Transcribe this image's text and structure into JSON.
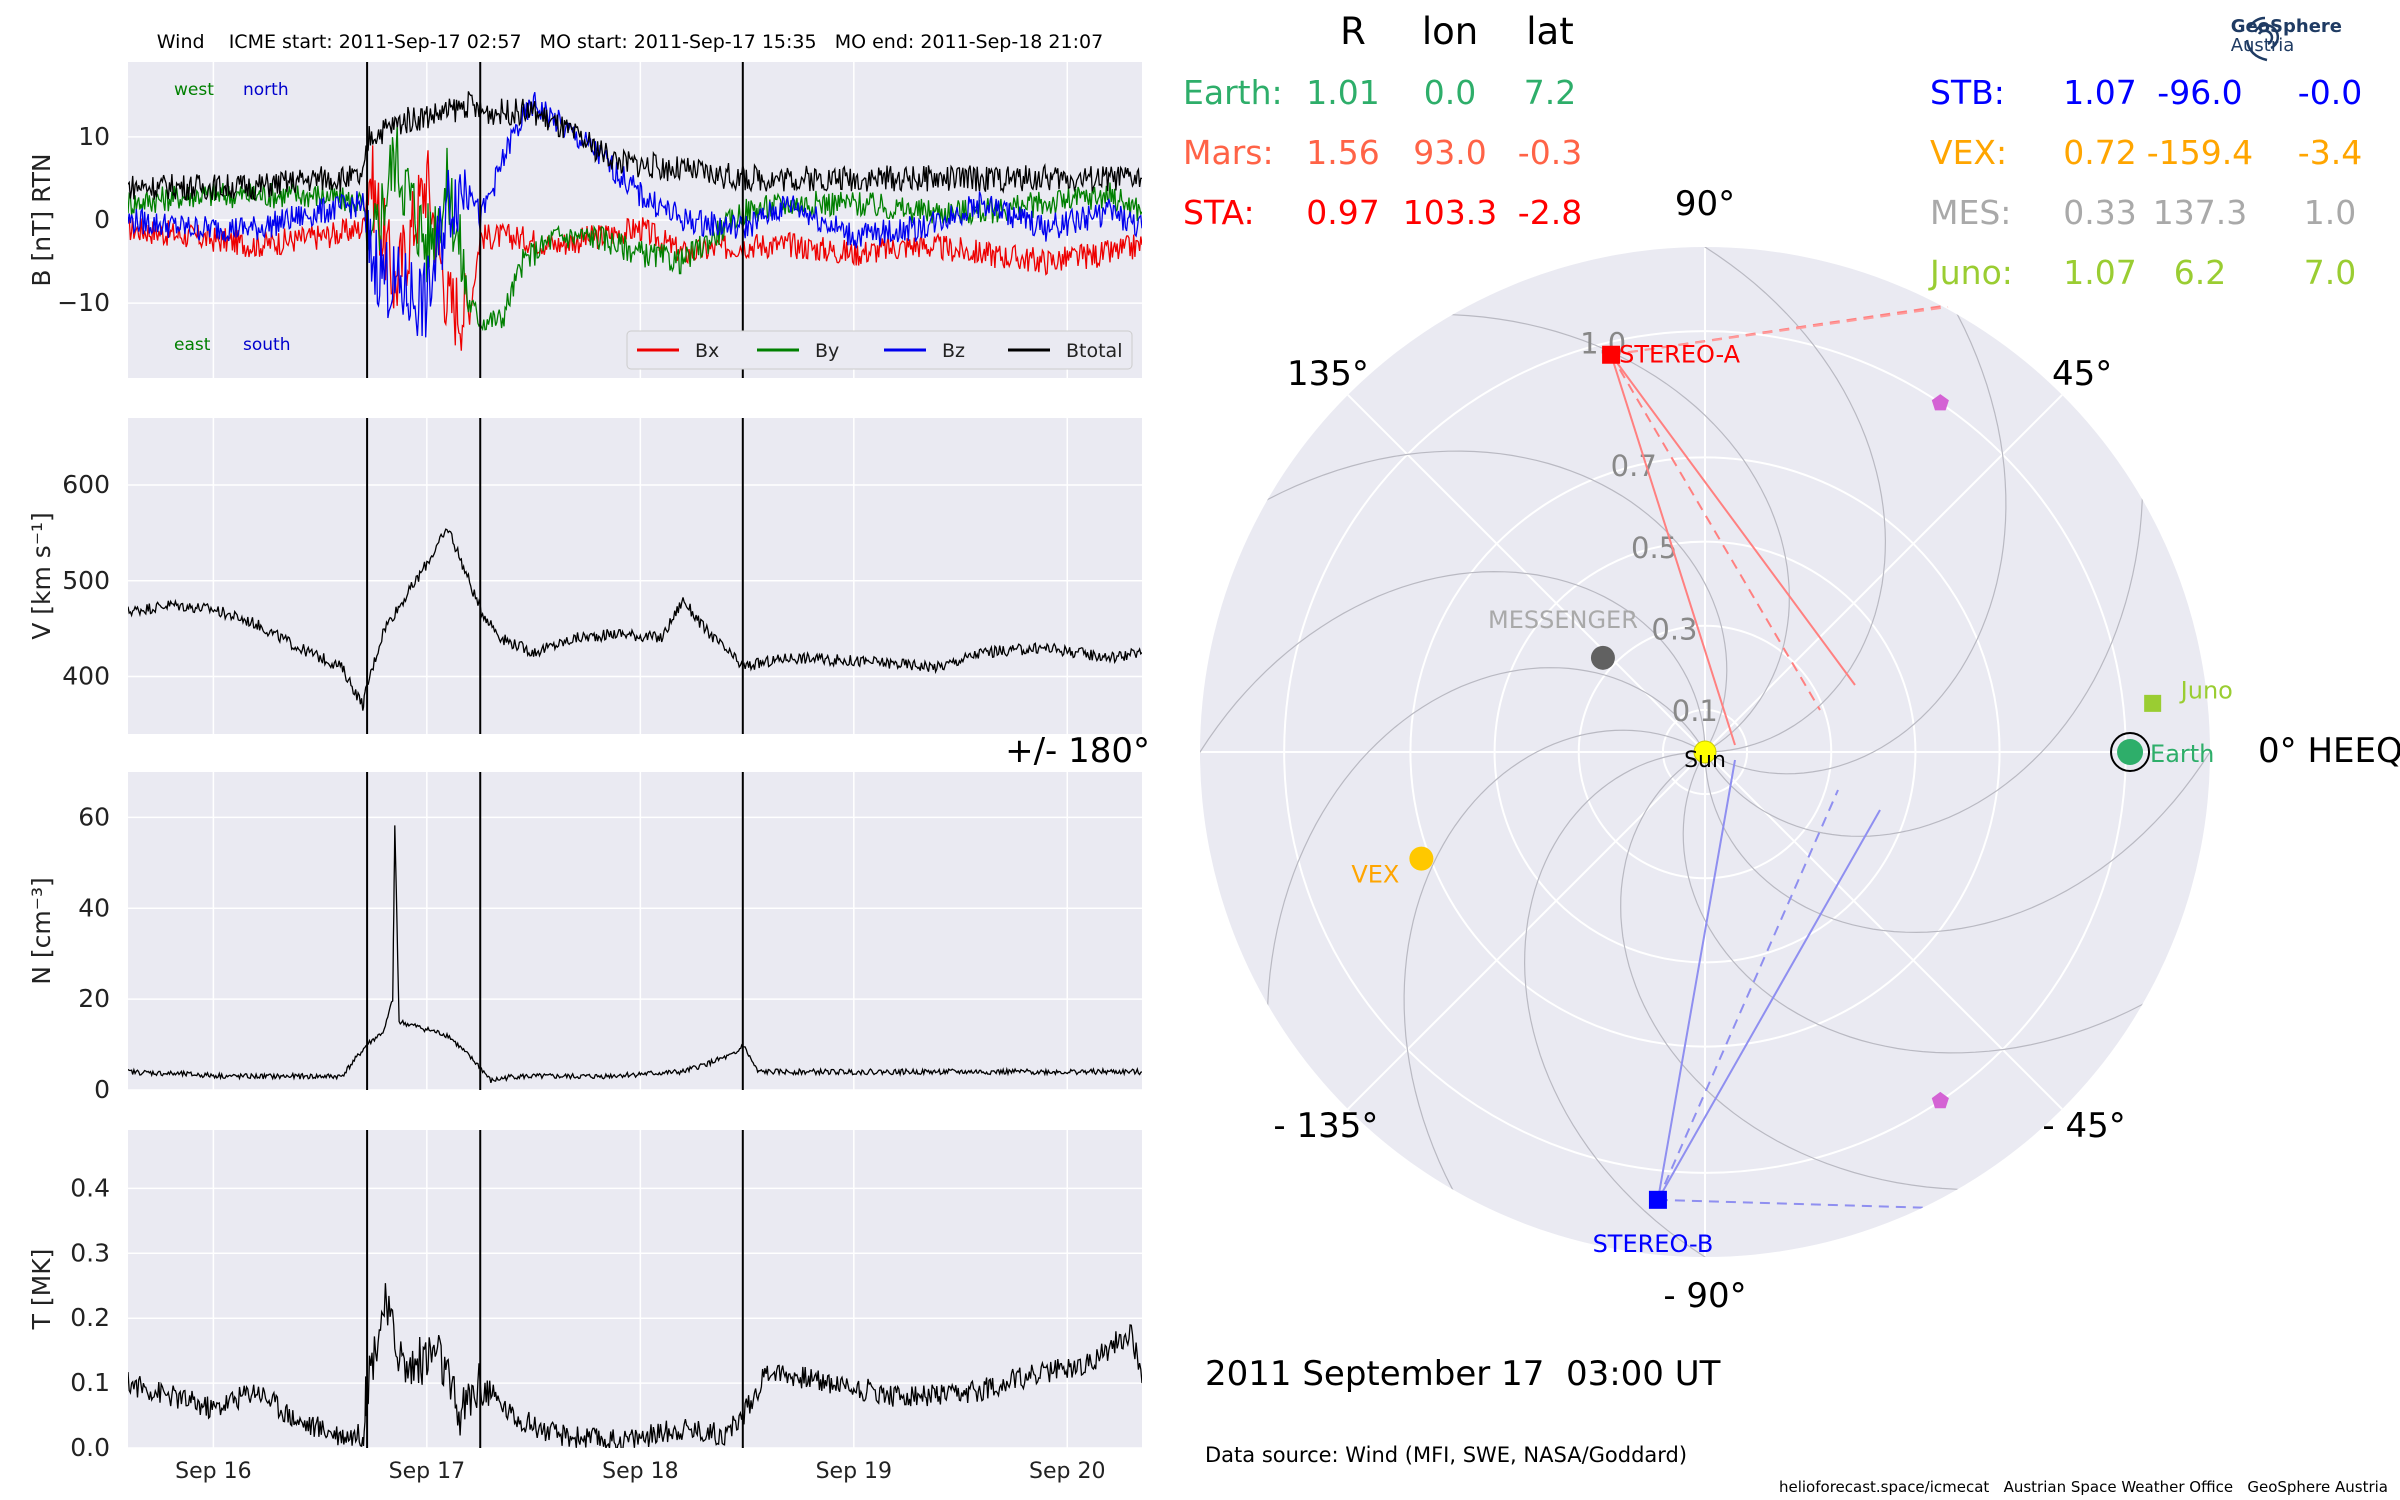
{
  "header": {
    "title": "Wind    ICME start: 2011-Sep-17 02:57   MO start: 2011-Sep-17 15:35   MO end: 2011-Sep-18 21:07"
  },
  "logo": {
    "line1": "GeoSphere",
    "line2": "Austria"
  },
  "chart_data": [
    {
      "type": "line",
      "title": "Wind    ICME start: 2011-Sep-17 02:57   MO start: 2011-Sep-17 15:35   MO end: 2011-Sep-18 21:07",
      "ylabel": "B [nT] RTN",
      "ylim": [
        -19,
        19
      ],
      "yticks": [
        -10,
        0,
        10
      ],
      "ytick_labels": [
        "−10",
        "0",
        "10"
      ],
      "xlim": [
        0,
        4.75
      ],
      "event_lines": [
        1.12,
        1.65,
        2.88
      ],
      "annotations": [
        {
          "text": "west",
          "color": "#008000"
        },
        {
          "text": "north",
          "color": "#0000cc"
        },
        {
          "text": "east",
          "color": "#008000"
        },
        {
          "text": "south",
          "color": "#0000cc"
        }
      ],
      "legend": {
        "placement": "lower-right",
        "entries": [
          {
            "name": "Bx",
            "color": "#ee0000"
          },
          {
            "name": "By",
            "color": "#008000"
          },
          {
            "name": "Bz",
            "color": "#0000ee"
          },
          {
            "name": "Btotal",
            "color": "#000000"
          }
        ]
      },
      "series": [
        {
          "name": "Bx",
          "color": "#ee0000",
          "x": [
            0,
            0.3,
            0.6,
            0.9,
            1.1,
            1.13,
            1.25,
            1.4,
            1.5,
            1.6,
            1.65,
            1.8,
            2.0,
            2.2,
            2.4,
            2.6,
            2.88,
            3.1,
            3.4,
            3.7,
            4.0,
            4.3,
            4.6,
            4.75
          ],
          "y": [
            -1,
            -2,
            -3,
            -2,
            -1,
            6,
            -8,
            5,
            -10,
            -11,
            -2,
            -2,
            -3,
            -2,
            -1,
            -4,
            -3,
            -3,
            -4,
            -3,
            -4,
            -5,
            -4,
            -3
          ]
        },
        {
          "name": "By",
          "color": "#008000",
          "x": [
            0,
            0.3,
            0.6,
            0.9,
            1.1,
            1.13,
            1.25,
            1.4,
            1.5,
            1.6,
            1.65,
            1.75,
            1.85,
            2.0,
            2.2,
            2.4,
            2.6,
            2.88,
            3.1,
            3.4,
            3.7,
            4.0,
            4.3,
            4.6,
            4.75
          ],
          "y": [
            2,
            3,
            3,
            3,
            2,
            -5,
            8,
            -3,
            4,
            -10,
            -12,
            -12,
            -5,
            -2,
            -2,
            -4,
            -5,
            1,
            2,
            2,
            1,
            1,
            2,
            3,
            1
          ]
        },
        {
          "name": "Bz",
          "color": "#0000ee",
          "x": [
            0,
            0.3,
            0.6,
            0.9,
            1.1,
            1.13,
            1.25,
            1.4,
            1.5,
            1.6,
            1.65,
            1.8,
            1.9,
            2.0,
            2.2,
            2.4,
            2.6,
            2.88,
            3.1,
            3.4,
            3.7,
            4.0,
            4.3,
            4.6,
            4.75
          ],
          "y": [
            0,
            -1,
            -1,
            1,
            2,
            -4,
            -8,
            -10,
            2,
            5,
            0,
            10,
            14,
            12,
            8,
            3,
            0,
            -1,
            2,
            -2,
            -1,
            2,
            -1,
            1,
            -1
          ]
        },
        {
          "name": "Btotal",
          "color": "#000000",
          "x": [
            0,
            0.3,
            0.6,
            0.9,
            1.1,
            1.13,
            1.3,
            1.5,
            1.6,
            1.65,
            1.9,
            2.1,
            2.3,
            2.6,
            2.88,
            3.1,
            3.5,
            3.9,
            4.3,
            4.75
          ],
          "y": [
            4,
            4,
            4,
            5,
            5,
            10,
            12,
            13,
            14,
            13,
            13,
            10,
            7,
            6,
            5,
            5,
            5,
            5,
            5,
            5
          ]
        }
      ]
    },
    {
      "type": "line",
      "ylabel": "V [km s⁻¹]",
      "ylim": [
        340,
        670
      ],
      "yticks": [
        400,
        500,
        600
      ],
      "xlim": [
        0,
        4.75
      ],
      "event_lines": [
        1.12,
        1.65,
        2.88
      ],
      "series": [
        {
          "name": "",
          "color": "#000000",
          "x": [
            0,
            0.2,
            0.4,
            0.6,
            0.8,
            1.0,
            1.1,
            1.12,
            1.2,
            1.35,
            1.5,
            1.65,
            1.75,
            1.9,
            2.1,
            2.3,
            2.5,
            2.6,
            2.7,
            2.88,
            3.1,
            3.5,
            3.8,
            4.0,
            4.3,
            4.6,
            4.75
          ],
          "y": [
            468,
            475,
            470,
            455,
            430,
            410,
            370,
            390,
            450,
            500,
            555,
            470,
            440,
            425,
            440,
            445,
            440,
            480,
            450,
            410,
            420,
            415,
            410,
            425,
            430,
            420,
            425
          ]
        }
      ]
    },
    {
      "type": "line",
      "ylabel": "N [cm⁻³]",
      "ylim": [
        0,
        70
      ],
      "yticks": [
        0,
        20,
        40,
        60
      ],
      "xlim": [
        0,
        4.75
      ],
      "event_lines": [
        1.12,
        1.65,
        2.88
      ],
      "series": [
        {
          "name": "",
          "color": "#000000",
          "x": [
            0,
            0.5,
            1.0,
            1.12,
            1.2,
            1.24,
            1.25,
            1.27,
            1.35,
            1.5,
            1.65,
            1.7,
            1.8,
            2.2,
            2.6,
            2.85,
            2.88,
            2.95,
            3.5,
            4.0,
            4.75
          ],
          "y": [
            4,
            3,
            3,
            10,
            13,
            20,
            58,
            15,
            14,
            12,
            5,
            2,
            3,
            3,
            4,
            8,
            10,
            4,
            4,
            4,
            4
          ]
        }
      ]
    },
    {
      "type": "line",
      "ylabel": "T [MK]",
      "ylim": [
        0,
        0.49
      ],
      "yticks": [
        0.0,
        0.1,
        0.2,
        0.3,
        0.4
      ],
      "ytick_labels": [
        "0.0",
        "0.1",
        "0.2",
        "0.3",
        "0.4"
      ],
      "xlim": [
        0,
        4.75
      ],
      "xticks": [
        0.4,
        1.4,
        2.4,
        3.4,
        4.4
      ],
      "xtick_labels": [
        "Sep 16",
        "Sep 17",
        "Sep 18",
        "Sep 19",
        "Sep 20"
      ],
      "event_lines": [
        1.12,
        1.65,
        2.88
      ],
      "series": [
        {
          "name": "",
          "color": "#000000",
          "x": [
            0,
            0.2,
            0.4,
            0.6,
            0.8,
            1.0,
            1.1,
            1.12,
            1.2,
            1.3,
            1.45,
            1.55,
            1.65,
            1.8,
            2.0,
            2.3,
            2.6,
            2.8,
            2.88,
            3.0,
            3.3,
            3.6,
            3.9,
            4.2,
            4.5,
            4.7,
            4.75
          ],
          "y": [
            0.1,
            0.08,
            0.06,
            0.09,
            0.04,
            0.02,
            0.02,
            0.1,
            0.22,
            0.12,
            0.15,
            0.05,
            0.1,
            0.05,
            0.02,
            0.01,
            0.03,
            0.02,
            0.05,
            0.12,
            0.1,
            0.08,
            0.08,
            0.11,
            0.13,
            0.18,
            0.1
          ]
        }
      ]
    },
    {
      "type": "scatter",
      "title": "2011 September 17  03:00 UT",
      "subtitle": "Data source: Wind (MFI, SWE, NASA/Goddard)",
      "coordinate_system": "0° HEEQ",
      "angle_labels": [
        {
          "deg": 90,
          "text": "90°"
        },
        {
          "deg": 45,
          "text": "45°"
        },
        {
          "deg": 135,
          "text": "135°"
        },
        {
          "deg": 0,
          "text": "0° HEEQ"
        },
        {
          "deg": 180,
          "text": "+/- 180°"
        },
        {
          "deg": -45,
          "text": "- 45°"
        },
        {
          "deg": -90,
          "text": "- 90°"
        },
        {
          "deg": -135,
          "text": "- 135°"
        }
      ],
      "radial_ticks": [
        {
          "r": 0.1,
          "text": "0.1"
        },
        {
          "r": 0.3,
          "text": "0.3"
        },
        {
          "r": 0.5,
          "text": "0.5"
        },
        {
          "r": 0.7,
          "text": "0.7"
        },
        {
          "r": 1.0,
          "text": "1.0"
        }
      ],
      "rlim": [
        0,
        1.2
      ],
      "table_header": [
        "R",
        "lon",
        "lat"
      ],
      "positions_left": [
        {
          "name": "Earth:",
          "R": "1.01",
          "lon": "0.0",
          "lat": "7.2",
          "color": "#2eae6a"
        },
        {
          "name": "Mars:",
          "R": "1.56",
          "lon": "93.0",
          "lat": "-0.3",
          "color": "#ff6347"
        },
        {
          "name": "STA:",
          "R": "0.97",
          "lon": "103.3",
          "lat": "-2.8",
          "color": "#ff0000"
        }
      ],
      "positions_right": [
        {
          "name": "STB:",
          "R": "1.07",
          "lon": "-96.0",
          "lat": "-0.0",
          "color": "#0000ff"
        },
        {
          "name": "VEX:",
          "R": "0.72",
          "lon": "-159.4",
          "lat": "-3.4",
          "color": "#ffa500"
        },
        {
          "name": "MES:",
          "R": "0.33",
          "lon": "137.3",
          "lat": "1.0",
          "color": "#a9a9a9"
        },
        {
          "name": "Juno:",
          "R": "1.07",
          "lon": "6.2",
          "lat": "7.0",
          "color": "#9acd32"
        }
      ],
      "bodies": [
        {
          "label": "Sun",
          "r": 0.0,
          "lon": 0,
          "color": "#ffff00",
          "marker": "circle",
          "label_color": "#000000"
        },
        {
          "label": "Earth",
          "r": 1.01,
          "lon": 0.0,
          "color": "#2eae6a",
          "marker": "circle",
          "label_color": "#2eae6a"
        },
        {
          "label": "Juno",
          "r": 1.07,
          "lon": 6.2,
          "color": "#9acd32",
          "marker": "square",
          "label_color": "#9acd32"
        },
        {
          "label": "STEREO-A",
          "r": 0.97,
          "lon": 103.3,
          "color": "#ff0000",
          "marker": "square",
          "label_color": "#ff0000"
        },
        {
          "label": "STEREO-B",
          "r": 1.07,
          "lon": -96.0,
          "color": "#0000ff",
          "marker": "square",
          "label_color": "#0000ff"
        },
        {
          "label": "VEX",
          "r": 0.72,
          "lon": -159.4,
          "color": "#ffc800",
          "marker": "circle",
          "label_color": "#ffa500"
        },
        {
          "label": "MESSENGER",
          "r": 0.33,
          "lon": 137.3,
          "color": "#616161",
          "marker": "circle",
          "label_color": "#a9a9a9"
        },
        {
          "label": "",
          "r": 1.0,
          "lon": 56,
          "color": "#d462d4",
          "marker": "pentagon",
          "label_color": "#d462d4"
        },
        {
          "label": "",
          "r": 1.0,
          "lon": -56,
          "color": "#d462d4",
          "marker": "pentagon",
          "label_color": "#d462d4"
        }
      ]
    }
  ],
  "footer": {
    "credits": "helioforecast.space/icmecat   Austrian Space Weather Office   GeoSphere Austria"
  }
}
